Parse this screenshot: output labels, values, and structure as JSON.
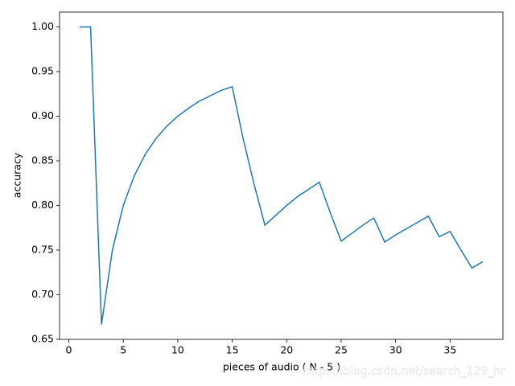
{
  "chart_data": {
    "type": "line",
    "x_label": "pieces of audio ( N - 5 )",
    "y_label": "accuracy",
    "watermark": "https://blog.csdn.net/search_129_hr",
    "x": [
      1,
      2,
      3,
      4,
      5,
      6,
      7,
      8,
      9,
      10,
      11,
      12,
      13,
      14,
      15,
      16,
      17,
      18,
      19,
      20,
      21,
      22,
      23,
      24,
      25,
      26,
      27,
      28,
      29,
      30,
      31,
      32,
      33,
      34,
      35,
      36,
      37,
      38
    ],
    "series": [
      {
        "color": "#1f77b4",
        "values": [
          1.0,
          1.0,
          0.6667,
          0.75,
          0.8,
          0.833,
          0.857,
          0.875,
          0.889,
          0.9,
          0.909,
          0.917,
          0.923,
          0.929,
          0.933,
          0.875,
          0.824,
          0.778,
          0.789,
          0.8,
          0.81,
          0.818,
          0.826,
          0.792,
          0.76,
          0.769,
          0.778,
          0.786,
          0.759,
          0.767,
          0.774,
          0.781,
          0.788,
          0.765,
          0.771,
          0.75,
          0.73,
          0.737
        ]
      }
    ],
    "xlim": [
      -0.85,
      39.85
    ],
    "ylim": [
      0.65,
      1.0167
    ],
    "xticks": [
      0,
      5,
      10,
      15,
      20,
      25,
      30,
      35
    ],
    "yticks": [
      {
        "value": 0.65,
        "label": "0.65"
      },
      {
        "value": 0.7,
        "label": "0.70"
      },
      {
        "value": 0.75,
        "label": "0.75"
      },
      {
        "value": 0.8,
        "label": "0.80"
      },
      {
        "value": 0.85,
        "label": "0.85"
      },
      {
        "value": 0.9,
        "label": "0.90"
      },
      {
        "value": 0.95,
        "label": "0.95"
      },
      {
        "value": 1.0,
        "label": "1.00"
      }
    ]
  }
}
